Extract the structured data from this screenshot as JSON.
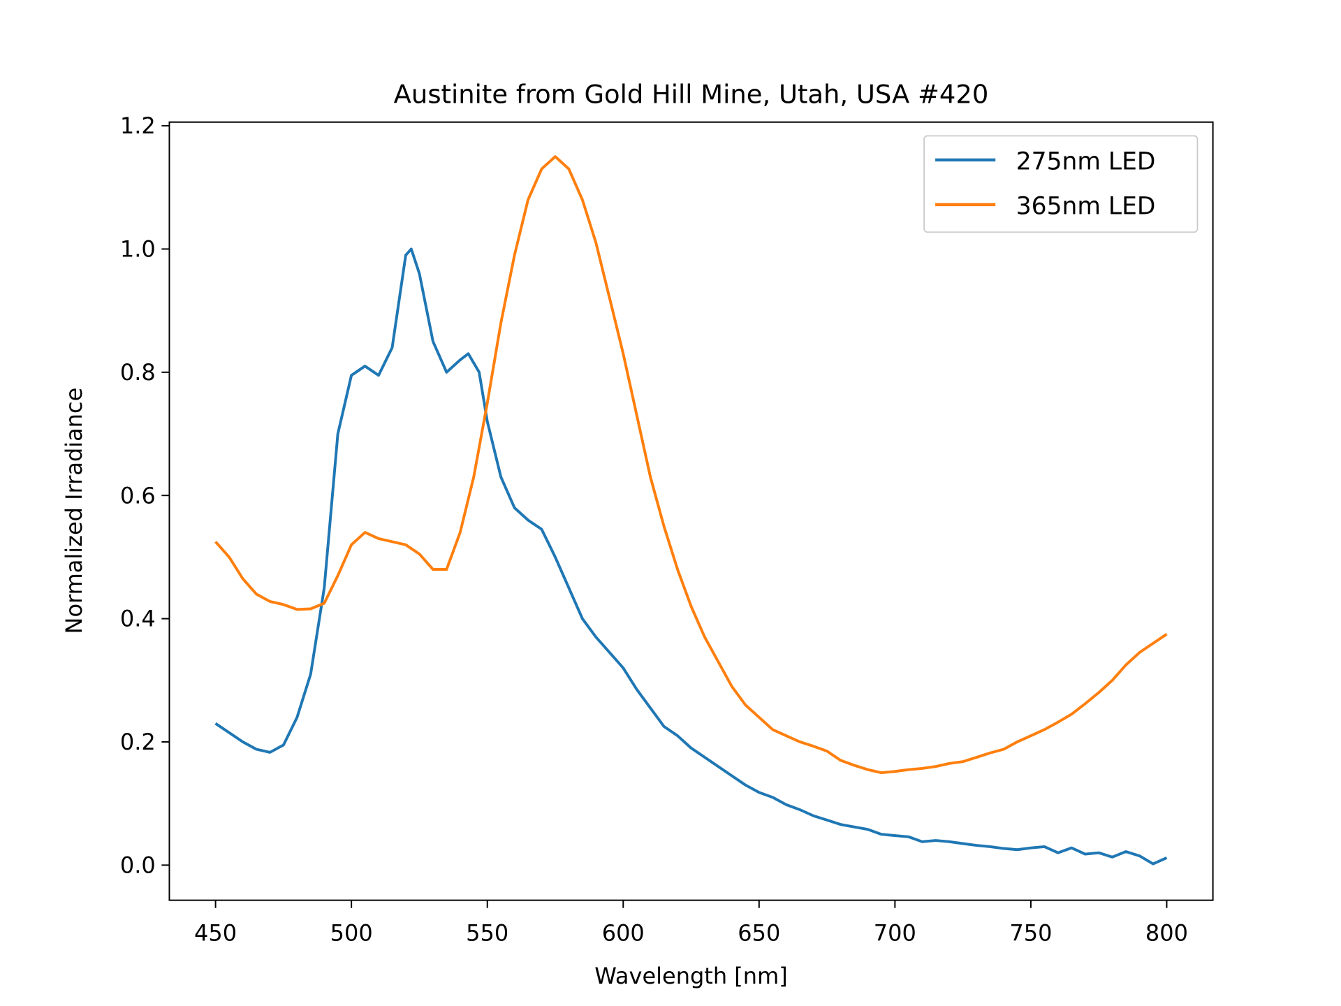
{
  "chart_data": {
    "type": "line",
    "title": "Austinite from Gold Hill Mine, Utah, USA #420",
    "xlabel": "Wavelength [nm]",
    "ylabel": "Normalized Irradiance",
    "xlim": [
      433,
      817
    ],
    "ylim": [
      -0.057,
      1.206
    ],
    "xticks": [
      450,
      500,
      550,
      600,
      650,
      700,
      750,
      800
    ],
    "yticks": [
      0.0,
      0.2,
      0.4,
      0.6,
      0.8,
      1.0,
      1.2
    ],
    "xtick_labels": [
      "450",
      "500",
      "550",
      "600",
      "650",
      "700",
      "750",
      "800"
    ],
    "ytick_labels": [
      "0.0",
      "0.2",
      "0.4",
      "0.6",
      "0.8",
      "1.0",
      "1.2"
    ],
    "grid": false,
    "legend_position": "top-right",
    "series": [
      {
        "name": "275nm LED",
        "color": "#1f77b4",
        "x": [
          450,
          455,
          460,
          465,
          470,
          475,
          480,
          485,
          490,
          495,
          500,
          505,
          510,
          515,
          520,
          522,
          525,
          530,
          535,
          540,
          543,
          547,
          550,
          555,
          560,
          565,
          570,
          575,
          580,
          585,
          590,
          595,
          600,
          605,
          610,
          615,
          620,
          625,
          630,
          635,
          640,
          645,
          650,
          655,
          660,
          665,
          670,
          675,
          680,
          685,
          690,
          695,
          700,
          705,
          710,
          715,
          720,
          725,
          730,
          735,
          740,
          745,
          750,
          755,
          760,
          765,
          770,
          775,
          780,
          785,
          790,
          795,
          800
        ],
        "y": [
          0.23,
          0.215,
          0.2,
          0.188,
          0.183,
          0.195,
          0.24,
          0.31,
          0.45,
          0.7,
          0.795,
          0.81,
          0.795,
          0.84,
          0.99,
          1.0,
          0.96,
          0.85,
          0.8,
          0.82,
          0.83,
          0.8,
          0.72,
          0.63,
          0.58,
          0.56,
          0.545,
          0.5,
          0.45,
          0.4,
          0.37,
          0.345,
          0.32,
          0.285,
          0.255,
          0.225,
          0.21,
          0.19,
          0.175,
          0.16,
          0.145,
          0.13,
          0.118,
          0.11,
          0.098,
          0.09,
          0.08,
          0.073,
          0.066,
          0.062,
          0.058,
          0.05,
          0.048,
          0.046,
          0.038,
          0.04,
          0.038,
          0.035,
          0.032,
          0.03,
          0.027,
          0.025,
          0.028,
          0.03,
          0.02,
          0.028,
          0.018,
          0.02,
          0.013,
          0.022,
          0.015,
          0.002,
          0.012
        ]
      },
      {
        "name": "365nm LED",
        "color": "#ff7f0e",
        "x": [
          450,
          455,
          460,
          465,
          470,
          475,
          480,
          485,
          490,
          495,
          500,
          505,
          510,
          515,
          520,
          525,
          530,
          535,
          540,
          545,
          550,
          555,
          560,
          565,
          570,
          575,
          580,
          585,
          590,
          595,
          600,
          605,
          610,
          615,
          620,
          625,
          630,
          635,
          640,
          645,
          650,
          655,
          660,
          665,
          670,
          675,
          680,
          685,
          690,
          695,
          700,
          705,
          710,
          715,
          720,
          725,
          730,
          735,
          740,
          745,
          750,
          755,
          760,
          765,
          770,
          775,
          780,
          785,
          790,
          795,
          800
        ],
        "y": [
          0.525,
          0.5,
          0.465,
          0.44,
          0.428,
          0.423,
          0.415,
          0.416,
          0.425,
          0.47,
          0.52,
          0.54,
          0.53,
          0.525,
          0.52,
          0.505,
          0.48,
          0.48,
          0.54,
          0.63,
          0.75,
          0.88,
          0.99,
          1.08,
          1.13,
          1.15,
          1.13,
          1.08,
          1.01,
          0.92,
          0.83,
          0.73,
          0.63,
          0.55,
          0.48,
          0.42,
          0.37,
          0.33,
          0.29,
          0.26,
          0.24,
          0.22,
          0.21,
          0.2,
          0.193,
          0.185,
          0.17,
          0.162,
          0.155,
          0.15,
          0.152,
          0.155,
          0.157,
          0.16,
          0.165,
          0.168,
          0.175,
          0.182,
          0.188,
          0.2,
          0.21,
          0.22,
          0.232,
          0.245,
          0.262,
          0.28,
          0.3,
          0.325,
          0.345,
          0.36,
          0.375
        ]
      }
    ]
  }
}
